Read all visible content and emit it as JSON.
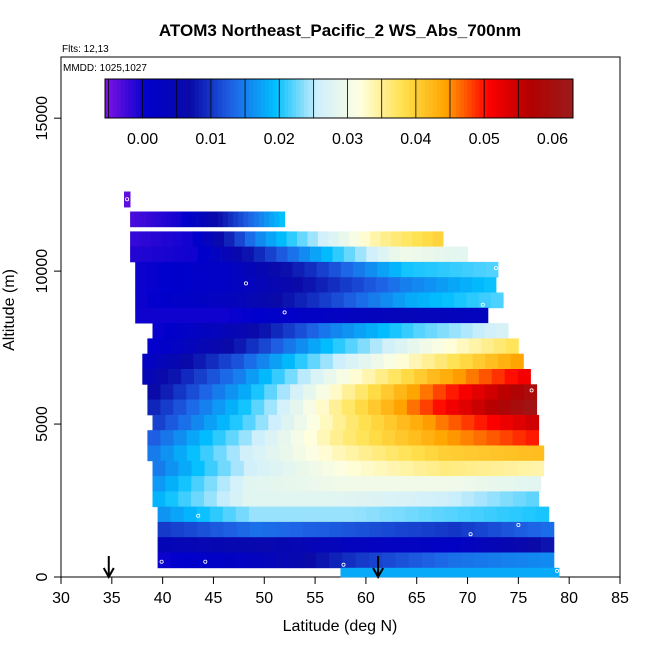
{
  "chart_data": {
    "type": "heatmap",
    "title": "ATOM3 Northeast_Pacific_2 WS_Abs_700nm",
    "flights_label": "Flts: 12,13",
    "dates_label": "MMDD: 1025,1027",
    "xlabel": "Latitude (deg N)",
    "ylabel": "Altitude (m)",
    "xlim": [
      30,
      85
    ],
    "ylim": [
      0,
      17000
    ],
    "x_ticks": [
      30,
      35,
      40,
      45,
      50,
      55,
      60,
      65,
      70,
      75,
      80,
      85
    ],
    "y_ticks": [
      0,
      5000,
      10000,
      15000
    ],
    "colorbar": {
      "range": [
        -0.0055,
        0.063
      ],
      "ticks": [
        0.0,
        0.01,
        0.02,
        0.03,
        0.04,
        0.05,
        0.06
      ],
      "tick_labels": [
        "0.00",
        "0.01",
        "0.02",
        "0.03",
        "0.04",
        "0.05",
        "0.06"
      ],
      "colors": [
        "#7f14e6",
        "#0000cc",
        "#0a0aa8",
        "#1e64e6",
        "#00bfff",
        "#cfeffc",
        "#ffffe0",
        "#ffe14d",
        "#ffa500",
        "#ff0000",
        "#b30000",
        "#9b1c1c"
      ]
    },
    "bands": [
      {
        "alt": 12350,
        "lat_start": 36.2,
        "lat_end": 36.8,
        "values": [
          -0.004
        ]
      },
      {
        "alt": 11700,
        "lat_start": 36.8,
        "lat_end": 52.0,
        "values": [
          -0.003,
          0.0,
          0.01,
          0.02
        ]
      },
      {
        "alt": 11050,
        "lat_start": 36.8,
        "lat_end": 67.6,
        "values": [
          -0.002,
          0.0,
          0.015,
          0.025,
          0.035,
          0.04
        ]
      },
      {
        "alt": 10550,
        "lat_start": 36.8,
        "lat_end": 70.0,
        "values": [
          -0.001,
          0.0,
          0.01,
          0.02,
          0.03,
          0.028
        ]
      },
      {
        "alt": 10050,
        "lat_start": 37.3,
        "lat_end": 73.0,
        "values": [
          0.0,
          0.002,
          0.01,
          0.02,
          0.022
        ]
      },
      {
        "alt": 9550,
        "lat_start": 37.3,
        "lat_end": 72.8,
        "values": [
          0.0,
          0.002,
          0.008,
          0.015,
          0.02
        ]
      },
      {
        "alt": 9050,
        "lat_start": 37.3,
        "lat_end": 73.5,
        "values": [
          0.0,
          0.003,
          0.01,
          0.018,
          0.022
        ]
      },
      {
        "alt": 8550,
        "lat_start": 37.3,
        "lat_end": 72.0,
        "values": [
          0.0,
          0.0,
          0.002,
          0.004,
          0.003
        ]
      },
      {
        "alt": 8050,
        "lat_start": 39.0,
        "lat_end": 74.0,
        "values": [
          0.0,
          0.005,
          0.015,
          0.022,
          0.027
        ]
      },
      {
        "alt": 7550,
        "lat_start": 38.5,
        "lat_end": 75.0,
        "values": [
          0.0,
          0.008,
          0.02,
          0.03,
          0.038
        ]
      },
      {
        "alt": 7050,
        "lat_start": 38.0,
        "lat_end": 75.5,
        "values": [
          0.002,
          0.012,
          0.025,
          0.035,
          0.045
        ]
      },
      {
        "alt": 6550,
        "lat_start": 38.0,
        "lat_end": 76.2,
        "values": [
          0.004,
          0.015,
          0.03,
          0.042,
          0.052
        ]
      },
      {
        "alt": 6050,
        "lat_start": 38.5,
        "lat_end": 76.8,
        "values": [
          0.006,
          0.018,
          0.034,
          0.048,
          0.06
        ]
      },
      {
        "alt": 5550,
        "lat_start": 38.5,
        "lat_end": 76.8,
        "values": [
          0.008,
          0.02,
          0.036,
          0.05,
          0.062
        ]
      },
      {
        "alt": 5050,
        "lat_start": 39.0,
        "lat_end": 77.0,
        "values": [
          0.01,
          0.022,
          0.036,
          0.046,
          0.055
        ]
      },
      {
        "alt": 4550,
        "lat_start": 38.5,
        "lat_end": 77.0,
        "values": [
          0.012,
          0.024,
          0.036,
          0.044,
          0.05
        ]
      },
      {
        "alt": 4050,
        "lat_start": 38.5,
        "lat_end": 77.5,
        "values": [
          0.014,
          0.026,
          0.034,
          0.04,
          0.042
        ]
      },
      {
        "alt": 3550,
        "lat_start": 39.0,
        "lat_end": 77.5,
        "values": [
          0.014,
          0.026,
          0.032,
          0.036,
          0.034
        ]
      },
      {
        "alt": 3050,
        "lat_start": 39.0,
        "lat_end": 77.2,
        "values": [
          0.016,
          0.028,
          0.03,
          0.03,
          0.028
        ]
      },
      {
        "alt": 2550,
        "lat_start": 39.0,
        "lat_end": 77.0,
        "values": [
          0.018,
          0.028,
          0.028,
          0.026,
          0.022
        ]
      },
      {
        "alt": 2050,
        "lat_start": 39.5,
        "lat_end": 78.0,
        "values": [
          0.016,
          0.024,
          0.024,
          0.022,
          0.02
        ]
      },
      {
        "alt": 1550,
        "lat_start": 39.5,
        "lat_end": 78.5,
        "values": [
          0.01,
          0.014,
          0.012,
          0.01,
          0.014
        ]
      },
      {
        "alt": 1050,
        "lat_start": 39.5,
        "lat_end": 78.5,
        "values": [
          0.004,
          0.006,
          0.003,
          0.002,
          0.008
        ]
      },
      {
        "alt": 550,
        "lat_start": 39.5,
        "lat_end": 78.5,
        "values": [
          0.0,
          0.003,
          0.01,
          0.014,
          0.016
        ]
      },
      {
        "alt": 150,
        "lat_start": 57.5,
        "lat_end": 79.0,
        "values": [
          0.018,
          0.018,
          0.018
        ]
      }
    ],
    "sample_points": [
      {
        "lat": 36.5,
        "alt": 12350
      },
      {
        "lat": 48.2,
        "alt": 9600
      },
      {
        "lat": 52.0,
        "alt": 8650
      },
      {
        "lat": 72.8,
        "alt": 10100
      },
      {
        "lat": 71.5,
        "alt": 8900
      },
      {
        "lat": 76.3,
        "alt": 6100
      },
      {
        "lat": 43.5,
        "alt": 2000
      },
      {
        "lat": 75.0,
        "alt": 1700
      },
      {
        "lat": 70.3,
        "alt": 1400
      },
      {
        "lat": 39.9,
        "alt": 500
      },
      {
        "lat": 44.2,
        "alt": 500
      },
      {
        "lat": 57.8,
        "alt": 400
      },
      {
        "lat": 78.8,
        "alt": 200
      }
    ],
    "arrows": [
      {
        "lat": 34.7
      },
      {
        "lat": 61.2
      }
    ]
  }
}
